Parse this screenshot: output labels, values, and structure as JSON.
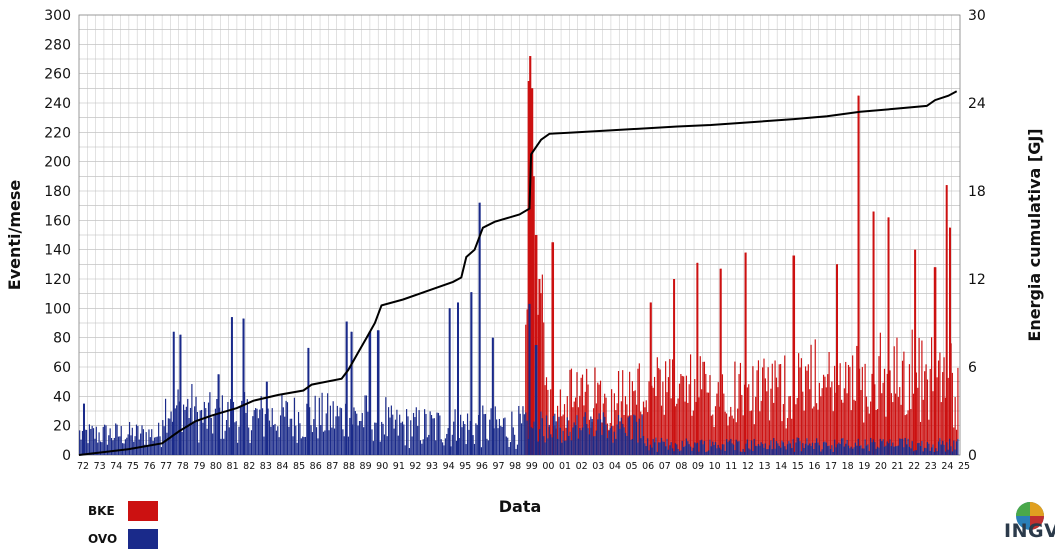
{
  "chart_data": {
    "type": "bar",
    "title": "",
    "xlabel": "Data",
    "ylabel": "Eventi/mese",
    "ylabel_right": "Energia cumulativa [GJ]",
    "ylim": [
      0,
      300
    ],
    "ylim_right": [
      0,
      30
    ],
    "yticks": [
      0,
      20,
      40,
      60,
      80,
      100,
      120,
      140,
      160,
      180,
      200,
      220,
      240,
      260,
      280,
      300
    ],
    "yticks_right": [
      0,
      6,
      12,
      18,
      24,
      30
    ],
    "grid": true,
    "xticks": [
      "72",
      "73",
      "74",
      "75",
      "76",
      "77",
      "78",
      "79",
      "80",
      "81",
      "82",
      "83",
      "84",
      "85",
      "86",
      "87",
      "88",
      "89",
      "90",
      "91",
      "92",
      "93",
      "94",
      "95",
      "96",
      "97",
      "98",
      "99",
      "00",
      "01",
      "02",
      "03",
      "04",
      "05",
      "06",
      "07",
      "08",
      "09",
      "10",
      "11",
      "12",
      "13",
      "14",
      "15",
      "16",
      "17",
      "18",
      "19",
      "20",
      "21",
      "22",
      "23",
      "24",
      "25"
    ],
    "series": [
      {
        "name": "BKE",
        "color": "#cc1111",
        "kind": "bar",
        "note_values_per_month": "monthly event counts (selected peaks)",
        "peaks": [
          {
            "x": 99.05,
            "y": 255
          },
          {
            "x": 99.15,
            "y": 272
          },
          {
            "x": 99.25,
            "y": 250
          },
          {
            "x": 99.35,
            "y": 190
          },
          {
            "x": 99.5,
            "y": 150
          },
          {
            "x": 99.7,
            "y": 120
          },
          {
            "x": 100.5,
            "y": 145
          },
          {
            "x": 106.4,
            "y": 104
          },
          {
            "x": 107.8,
            "y": 120
          },
          {
            "x": 109.2,
            "y": 131
          },
          {
            "x": 110.6,
            "y": 127
          },
          {
            "x": 112.1,
            "y": 138
          },
          {
            "x": 115.0,
            "y": 136
          },
          {
            "x": 117.6,
            "y": 130
          },
          {
            "x": 118.9,
            "y": 245
          },
          {
            "x": 119.8,
            "y": 166
          },
          {
            "x": 120.7,
            "y": 162
          },
          {
            "x": 122.3,
            "y": 140
          },
          {
            "x": 123.5,
            "y": 128
          },
          {
            "x": 124.2,
            "y": 184
          },
          {
            "x": 124.4,
            "y": 155
          }
        ]
      },
      {
        "name": "OVO",
        "color": "#1a2a8a",
        "kind": "bar",
        "peaks": [
          {
            "x": 72.3,
            "y": 35
          },
          {
            "x": 77.7,
            "y": 84
          },
          {
            "x": 78.1,
            "y": 82
          },
          {
            "x": 80.4,
            "y": 55
          },
          {
            "x": 81.2,
            "y": 94
          },
          {
            "x": 81.9,
            "y": 93
          },
          {
            "x": 83.3,
            "y": 50
          },
          {
            "x": 85.8,
            "y": 73
          },
          {
            "x": 88.1,
            "y": 91
          },
          {
            "x": 88.4,
            "y": 84
          },
          {
            "x": 89.5,
            "y": 84
          },
          {
            "x": 90.0,
            "y": 85
          },
          {
            "x": 94.3,
            "y": 100
          },
          {
            "x": 94.8,
            "y": 104
          },
          {
            "x": 95.6,
            "y": 111
          },
          {
            "x": 96.1,
            "y": 172
          },
          {
            "x": 96.9,
            "y": 80
          },
          {
            "x": 99.1,
            "y": 103
          },
          {
            "x": 99.5,
            "y": 75
          }
        ]
      },
      {
        "name": "Energia cumulativa",
        "color": "#000000",
        "kind": "line",
        "axis": "right",
        "points": [
          [
            72.0,
            0.0
          ],
          [
            75.0,
            0.4
          ],
          [
            77.0,
            0.8
          ],
          [
            78.0,
            1.6
          ],
          [
            79.0,
            2.3
          ],
          [
            80.0,
            2.7
          ],
          [
            81.5,
            3.2
          ],
          [
            82.5,
            3.7
          ],
          [
            84.0,
            4.1
          ],
          [
            85.5,
            4.4
          ],
          [
            86.0,
            4.8
          ],
          [
            87.8,
            5.2
          ],
          [
            88.2,
            5.8
          ],
          [
            88.8,
            7.0
          ],
          [
            89.3,
            8.0
          ],
          [
            89.8,
            9.0
          ],
          [
            90.2,
            10.2
          ],
          [
            91.5,
            10.6
          ],
          [
            93.0,
            11.2
          ],
          [
            94.5,
            11.8
          ],
          [
            95.0,
            12.1
          ],
          [
            95.3,
            13.5
          ],
          [
            95.8,
            14.0
          ],
          [
            96.3,
            15.5
          ],
          [
            97.0,
            15.9
          ],
          [
            98.5,
            16.4
          ],
          [
            99.1,
            16.8
          ],
          [
            99.2,
            20.5
          ],
          [
            99.8,
            21.5
          ],
          [
            100.3,
            21.9
          ],
          [
            102.0,
            22.0
          ],
          [
            105.0,
            22.2
          ],
          [
            108.0,
            22.4
          ],
          [
            110.0,
            22.5
          ],
          [
            112.5,
            22.7
          ],
          [
            115.0,
            22.9
          ],
          [
            117.0,
            23.1
          ],
          [
            119.0,
            23.4
          ],
          [
            121.0,
            23.6
          ],
          [
            123.0,
            23.8
          ],
          [
            123.5,
            24.2
          ],
          [
            124.3,
            24.5
          ],
          [
            124.8,
            24.8
          ]
        ]
      }
    ]
  },
  "legend": [
    {
      "label": "BKE",
      "color": "#cc1111"
    },
    {
      "label": "OVO",
      "color": "#1a2a8a"
    }
  ],
  "logo": {
    "text": "INGV"
  }
}
